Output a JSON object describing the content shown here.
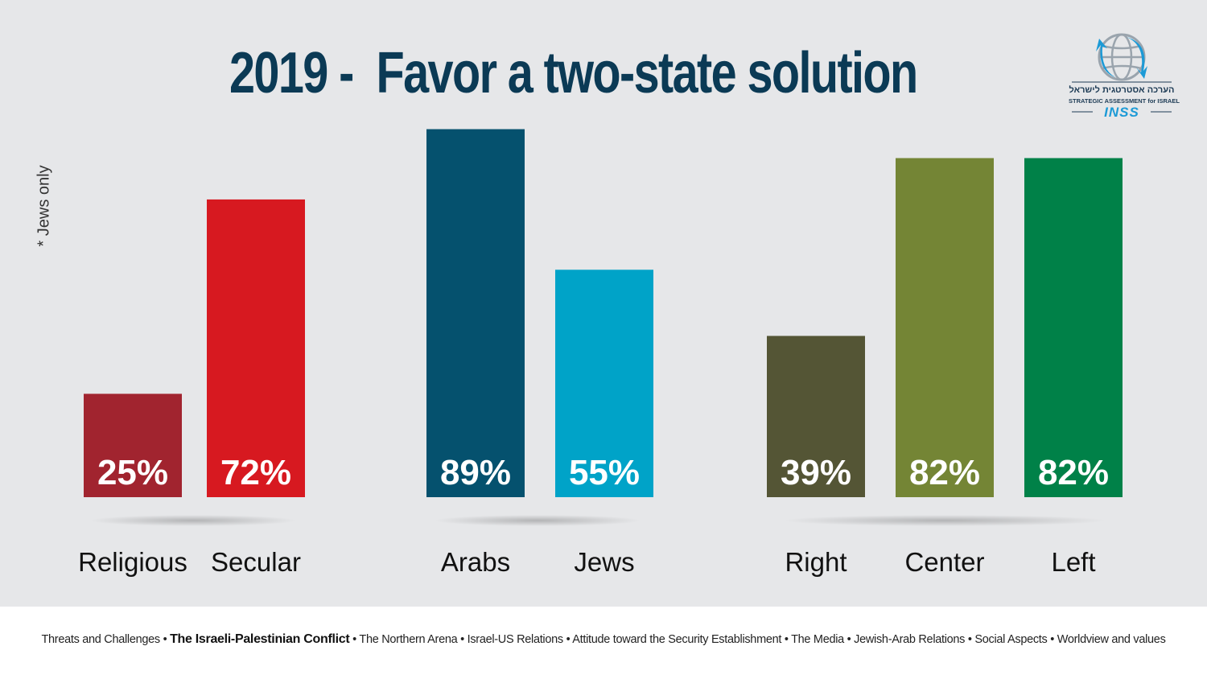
{
  "title": "2019 -  Favor a two-state solution",
  "note": "* Jews only",
  "logo": {
    "hebrew": "הערכה אסטרטגית לישראל",
    "english": "STRATEGIC ASSESSMENT for ISRAEL",
    "brand": "INSS"
  },
  "chart_data": {
    "type": "bar",
    "title": "2019 -  Favor a two-state solution",
    "xlabel": "",
    "ylabel": "",
    "ylim": [
      0,
      100
    ],
    "grid": false,
    "categories": [
      "Religious",
      "Secular",
      "Arabs",
      "Jews",
      "Right",
      "Center",
      "Left"
    ],
    "values": [
      25,
      72,
      89,
      55,
      39,
      82,
      82
    ],
    "labels": [
      "25%",
      "72%",
      "89%",
      "55%",
      "39%",
      "82%",
      "82%"
    ],
    "colors": [
      "#a1242f",
      "#d71920",
      "#05516e",
      "#00a3c8",
      "#545535",
      "#748535",
      "#008148"
    ],
    "groups": [
      {
        "categories": [
          "Religious",
          "Secular"
        ]
      },
      {
        "categories": [
          "Arabs",
          "Jews"
        ]
      },
      {
        "categories": [
          "Right",
          "Center",
          "Left"
        ]
      }
    ]
  },
  "footer": {
    "items": [
      "Threats and Challenges",
      "The Israeli-Palestinian Conflict",
      "The Northern  Arena",
      "Israel-US Relations",
      "Attitude toward the Security Establishment",
      "The Media",
      "Jewish-Arab Relations",
      "Social Aspects",
      "Worldview and values"
    ],
    "active_index": 1,
    "separator": "•"
  }
}
